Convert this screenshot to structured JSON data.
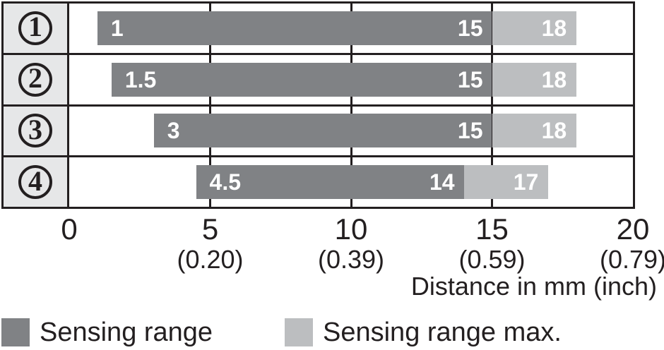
{
  "chart_data": {
    "type": "bar",
    "orientation": "horizontal",
    "title": "",
    "xlabel": "Distance in mm (inch)",
    "xlim": [
      0,
      20
    ],
    "gridlines_mm": [
      5,
      10,
      15
    ],
    "x_ticks": [
      {
        "mm": "0",
        "inch": ""
      },
      {
        "mm": "5",
        "inch": "(0.20)"
      },
      {
        "mm": "10",
        "inch": "(0.39)"
      },
      {
        "mm": "15",
        "inch": "(0.59)"
      },
      {
        "mm": "20",
        "inch": "(0.79)"
      }
    ],
    "rows": [
      {
        "label": "1",
        "start": 1,
        "end": 15,
        "max": 18,
        "start_label": "1",
        "end_label": "15",
        "max_label": "18"
      },
      {
        "label": "2",
        "start": 1.5,
        "end": 15,
        "max": 18,
        "start_label": "1.5",
        "end_label": "15",
        "max_label": "18"
      },
      {
        "label": "3",
        "start": 3,
        "end": 15,
        "max": 18,
        "start_label": "3",
        "end_label": "15",
        "max_label": "18"
      },
      {
        "label": "4",
        "start": 4.5,
        "end": 14,
        "max": 17,
        "start_label": "4.5",
        "end_label": "14",
        "max_label": "17"
      }
    ],
    "legend": [
      {
        "label": "Sensing range",
        "color": "#808285"
      },
      {
        "label": "Sensing range max.",
        "color": "#BCBEC0"
      }
    ],
    "colors": {
      "sensing_range": "#808285",
      "sensing_range_max": "#BCBEC0",
      "row_header_bg": "#E6E7E8",
      "border": "#231F20",
      "bar_label": "#FFFFFF",
      "text": "#231F20"
    }
  }
}
